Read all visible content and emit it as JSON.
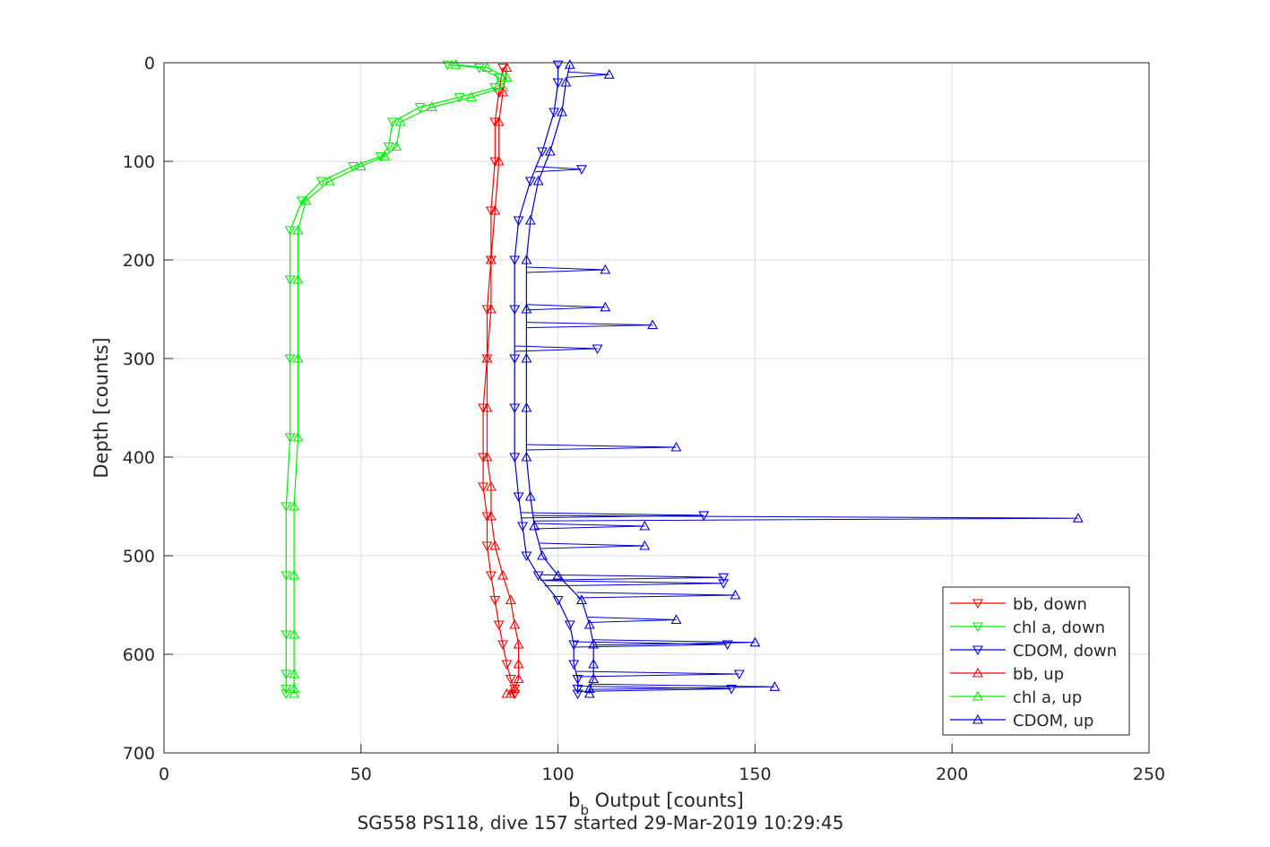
{
  "chart_data": {
    "type": "line",
    "xlabel_main": "b",
    "xlabel_sub": "b",
    "xlabel_rest": " Output [counts]",
    "ylabel": "Depth [counts]",
    "caption": "SG558 PS118, dive 157 started 29-Mar-2019 10:29:45",
    "xlim": [
      0,
      250
    ],
    "ylim": [
      0,
      700
    ],
    "y_reversed": true,
    "grid": true,
    "legend_placement": "bottom-right",
    "x_ticks": [
      0,
      50,
      100,
      150,
      200,
      250
    ],
    "y_ticks": [
      0,
      100,
      200,
      300,
      400,
      500,
      600,
      700
    ],
    "series": [
      {
        "name": "bb, down",
        "color": "#ff0000",
        "marker": "triangle-down",
        "x": [
          86,
          85,
          84,
          84,
          83,
          83,
          82,
          82,
          81,
          81,
          81,
          82,
          82,
          83,
          84,
          85,
          86,
          87,
          88,
          89,
          89,
          89
        ],
        "y": [
          5,
          30,
          60,
          100,
          150,
          200,
          250,
          300,
          350,
          400,
          430,
          460,
          490,
          520,
          545,
          570,
          590,
          610,
          625,
          635,
          640,
          640
        ]
      },
      {
        "name": "chl a, down",
        "color": "#00ee00",
        "marker": "triangle-down",
        "x": [
          72,
          80,
          85,
          84,
          75,
          65,
          58,
          57,
          55,
          48,
          40,
          35,
          32,
          32,
          32,
          32,
          31,
          31,
          31,
          31,
          31,
          31
        ],
        "y": [
          2,
          5,
          15,
          25,
          35,
          45,
          60,
          85,
          95,
          105,
          120,
          140,
          170,
          220,
          300,
          380,
          450,
          520,
          580,
          620,
          635,
          640
        ]
      },
      {
        "name": "CDOM, down",
        "color": "#0000cc",
        "marker": "triangle-down",
        "x": [
          100,
          100,
          99,
          96,
          93,
          90,
          89,
          89,
          89,
          89,
          89,
          90,
          91,
          92,
          95,
          100,
          103,
          104,
          104,
          105,
          105,
          105
        ],
        "y": [
          2,
          20,
          50,
          90,
          120,
          160,
          200,
          250,
          300,
          350,
          400,
          440,
          470,
          500,
          520,
          545,
          570,
          590,
          610,
          625,
          635,
          640
        ]
      },
      {
        "name": "bb, up",
        "color": "#ff0000",
        "marker": "triangle-up",
        "x": [
          87,
          86,
          85,
          85,
          84,
          83,
          83,
          82,
          82,
          82,
          83,
          83,
          84,
          86,
          88,
          89,
          90,
          90,
          90,
          89,
          88,
          87
        ],
        "y": [
          5,
          30,
          60,
          100,
          150,
          200,
          250,
          300,
          350,
          400,
          430,
          460,
          490,
          520,
          545,
          570,
          590,
          610,
          625,
          635,
          640,
          640
        ]
      },
      {
        "name": "chl a, up",
        "color": "#00ee00",
        "marker": "triangle-up",
        "x": [
          74,
          82,
          87,
          86,
          78,
          68,
          60,
          59,
          56,
          50,
          42,
          36,
          34,
          34,
          34,
          34,
          33,
          33,
          33,
          33,
          33,
          33
        ],
        "y": [
          2,
          5,
          15,
          25,
          35,
          45,
          60,
          85,
          95,
          105,
          120,
          140,
          170,
          220,
          300,
          380,
          450,
          520,
          580,
          620,
          635,
          640
        ]
      },
      {
        "name": "CDOM, up",
        "color": "#0000cc",
        "marker": "triangle-up",
        "x": [
          103,
          102,
          101,
          98,
          95,
          93,
          92,
          92,
          92,
          92,
          92,
          93,
          94,
          96,
          100,
          106,
          108,
          109,
          109,
          109,
          108,
          108
        ],
        "y": [
          2,
          20,
          50,
          90,
          120,
          160,
          200,
          250,
          300,
          350,
          400,
          440,
          470,
          500,
          520,
          545,
          570,
          590,
          610,
          625,
          635,
          640
        ]
      }
    ],
    "spikes": [
      {
        "series": "CDOM, up",
        "x": 113,
        "y": 12
      },
      {
        "series": "CDOM, down",
        "x": 106,
        "y": 108
      },
      {
        "series": "CDOM, up",
        "x": 112,
        "y": 210
      },
      {
        "series": "CDOM, up",
        "x": 112,
        "y": 248
      },
      {
        "series": "CDOM, up",
        "x": 124,
        "y": 266
      },
      {
        "series": "CDOM, down",
        "x": 110,
        "y": 290
      },
      {
        "series": "CDOM, up",
        "x": 130,
        "y": 390
      },
      {
        "series": "CDOM, down",
        "x": 137,
        "y": 459
      },
      {
        "series": "CDOM, up",
        "x": 232,
        "y": 462
      },
      {
        "series": "CDOM, up",
        "x": 122,
        "y": 470
      },
      {
        "series": "CDOM, up",
        "x": 122,
        "y": 490
      },
      {
        "series": "CDOM, down",
        "x": 142,
        "y": 522
      },
      {
        "series": "CDOM, down",
        "x": 142,
        "y": 528
      },
      {
        "series": "CDOM, up",
        "x": 145,
        "y": 540
      },
      {
        "series": "CDOM, up",
        "x": 130,
        "y": 565
      },
      {
        "series": "CDOM, up",
        "x": 150,
        "y": 588
      },
      {
        "series": "CDOM, down",
        "x": 143,
        "y": 590
      },
      {
        "series": "CDOM, down",
        "x": 146,
        "y": 620
      },
      {
        "series": "CDOM, up",
        "x": 155,
        "y": 633
      },
      {
        "series": "CDOM, down",
        "x": 144,
        "y": 635
      }
    ],
    "legend_entries": [
      "bb, down",
      "chl a, down",
      "CDOM, down",
      "bb, up",
      "chl a, up",
      "CDOM, up"
    ]
  }
}
